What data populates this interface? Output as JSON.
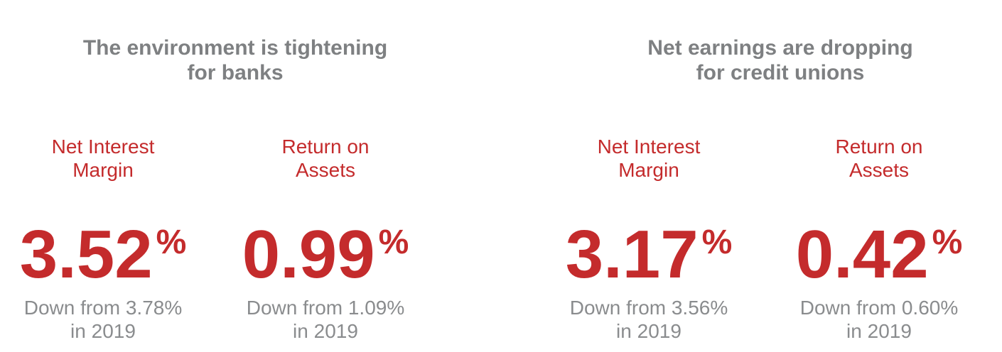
{
  "colors": {
    "accent_red": "#c42b2c",
    "headline_gray": "#7e8082",
    "note_gray": "#8a8c8e",
    "background": "#ffffff"
  },
  "sections": [
    {
      "title_line1": "The environment is tightening",
      "title_line2": "for banks",
      "stats": [
        {
          "label_line1": "Net Interest",
          "label_line2": "Margin",
          "value": "3.52",
          "unit": "%",
          "note_line1": "Down from 3.78%",
          "note_line2": "in 2019"
        },
        {
          "label_line1": "Return on",
          "label_line2": "Assets",
          "value": "0.99",
          "unit": "%",
          "note_line1": "Down from 1.09%",
          "note_line2": "in 2019"
        }
      ]
    },
    {
      "title_line1": "Net earnings are dropping",
      "title_line2": "for credit unions",
      "stats": [
        {
          "label_line1": "Net Interest",
          "label_line2": "Margin",
          "value": "3.17",
          "unit": "%",
          "note_line1": "Down from 3.56%",
          "note_line2": "in 2019"
        },
        {
          "label_line1": "Return on",
          "label_line2": "Assets",
          "value": "0.42",
          "unit": "%",
          "note_line1": "Down from 0.60%",
          "note_line2": "in 2019"
        }
      ]
    }
  ],
  "chart_data": {
    "type": "table",
    "groups": [
      {
        "headline": "The environment is tightening for banks",
        "metrics": [
          {
            "name": "Net Interest Margin",
            "current_pct": 3.52,
            "prior_2019_pct": 3.78
          },
          {
            "name": "Return on Assets",
            "current_pct": 0.99,
            "prior_2019_pct": 1.09
          }
        ]
      },
      {
        "headline": "Net earnings are dropping for credit unions",
        "metrics": [
          {
            "name": "Net Interest Margin",
            "current_pct": 3.17,
            "prior_2019_pct": 3.56
          },
          {
            "name": "Return on Assets",
            "current_pct": 0.42,
            "prior_2019_pct": 0.6
          }
        ]
      }
    ]
  }
}
